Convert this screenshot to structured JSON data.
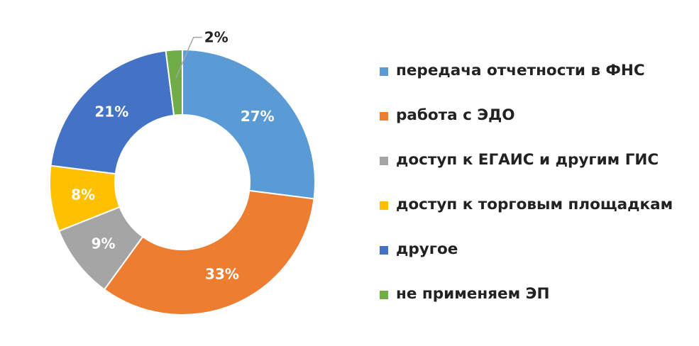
{
  "chart_data": {
    "type": "pie",
    "donut": true,
    "title": "",
    "legend_position": "right",
    "categories": [
      "передача отчетности в ФНС",
      "работа с ЭДО",
      "доступ к ЕГАИС и другим ГИС",
      "доступ к торговым площадкам",
      "другое",
      "не применяем ЭП"
    ],
    "values": [
      27,
      33,
      9,
      8,
      21,
      2
    ],
    "labels": [
      "27%",
      "33%",
      "9%",
      "8%",
      "21%",
      "2%"
    ],
    "colors": [
      "#5B9BD5",
      "#ED7D31",
      "#A5A5A5",
      "#FFC000",
      "#4472C4",
      "#70AD47"
    ]
  }
}
